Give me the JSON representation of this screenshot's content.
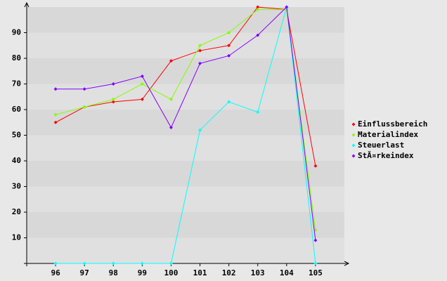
{
  "chart_data": {
    "type": "line",
    "x": [
      96,
      97,
      98,
      99,
      100,
      101,
      102,
      103,
      104,
      105
    ],
    "xlim": [
      95,
      106
    ],
    "xticks": [
      96,
      97,
      98,
      99,
      100,
      101,
      102,
      103,
      104,
      105
    ],
    "ylim": [
      0,
      100
    ],
    "yticks": [
      10,
      20,
      30,
      40,
      50,
      60,
      70,
      80,
      90
    ],
    "grid": true,
    "legend": "right",
    "series": [
      {
        "name": "Einflussbereich",
        "color": "#ff0000",
        "values": [
          55,
          61,
          63,
          64,
          79,
          83,
          85,
          100,
          99,
          38
        ]
      },
      {
        "name": "Materialindex",
        "color": "#80ff00",
        "values": [
          58,
          61,
          64,
          70,
          64,
          85,
          90,
          99,
          99,
          13
        ]
      },
      {
        "name": "Steuerlast",
        "color": "#00ffff",
        "values": [
          0,
          0,
          0,
          0,
          0,
          52,
          63,
          59,
          100,
          0
        ]
      },
      {
        "name": "StÃ¤rkeindex",
        "color": "#8000ff",
        "values": [
          68,
          68,
          70,
          73,
          53,
          78,
          81,
          89,
          100,
          9
        ]
      }
    ]
  }
}
